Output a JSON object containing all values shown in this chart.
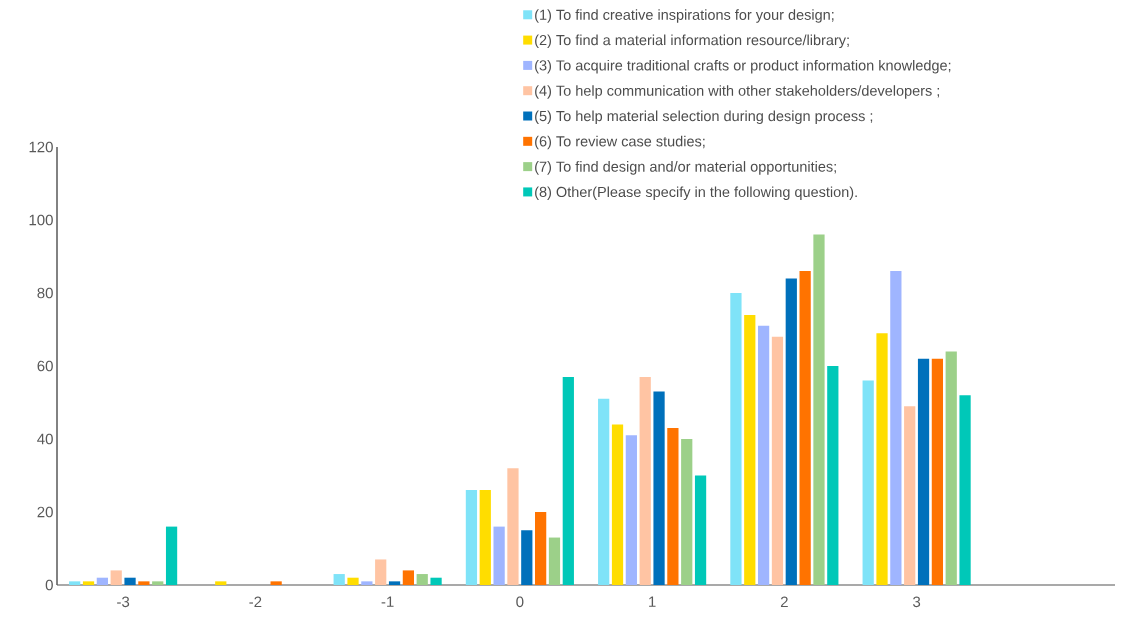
{
  "chart_data": {
    "type": "bar",
    "categories": [
      "-3",
      "-2",
      "-1",
      "0",
      "1",
      "2",
      "3",
      null
    ],
    "ylim": [
      0,
      120
    ],
    "yticks": [
      0,
      20,
      40,
      60,
      80,
      100,
      120
    ],
    "legend": "top right",
    "series": [
      {
        "name": "(1) To find creative inspirations for your design;",
        "color": "#7fe3f8",
        "values": [
          1,
          0,
          3,
          26,
          51,
          80,
          56,
          null
        ]
      },
      {
        "name": "(2) To find a material information resource/library;",
        "color": "#ffdd00",
        "values": [
          1,
          1,
          2,
          26,
          44,
          74,
          69,
          null
        ]
      },
      {
        "name": "(3) To acquire traditional crafts or product information knowledge;",
        "color": "#9fb5ff",
        "values": [
          2,
          0,
          1,
          16,
          41,
          71,
          86,
          null
        ]
      },
      {
        "name": "(4) To help communication with other stakeholders/developers ;",
        "color": "#ffc4a3",
        "values": [
          4,
          0,
          7,
          32,
          57,
          68,
          49,
          null
        ]
      },
      {
        "name": "(5) To help material selection during design process ;",
        "color": "#0070bb",
        "values": [
          2,
          0,
          1,
          15,
          53,
          84,
          62,
          null
        ]
      },
      {
        "name": "(6) To review case studies;",
        "color": "#ff7300",
        "values": [
          1,
          1,
          4,
          20,
          43,
          86,
          62,
          null
        ]
      },
      {
        "name": "(7) To find design and/or material opportunities;",
        "color": "#9cd089",
        "values": [
          1,
          0,
          3,
          13,
          40,
          96,
          64,
          null
        ]
      },
      {
        "name": "(8) Other(Please specify in the following question).",
        "color": "#00c8b8",
        "values": [
          16,
          0,
          2,
          57,
          30,
          60,
          52,
          null
        ]
      }
    ]
  }
}
